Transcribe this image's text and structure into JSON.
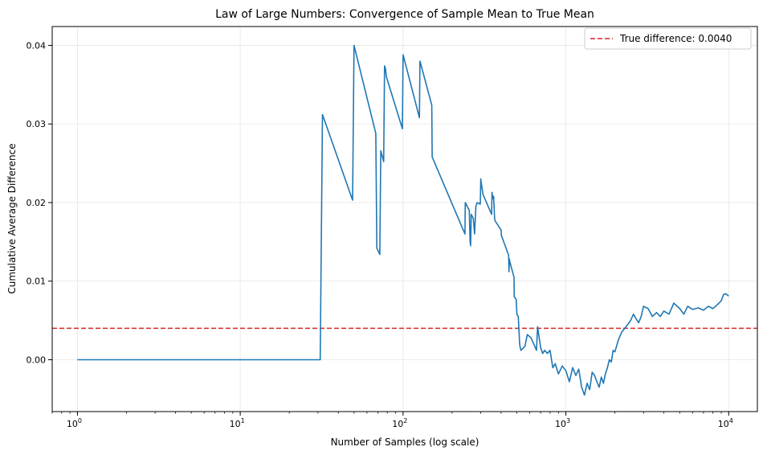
{
  "chart_data": {
    "type": "line",
    "title": "Law of Large Numbers: Convergence of Sample Mean to True Mean",
    "xlabel": "Number of Samples (log scale)",
    "ylabel": "Cumulative Average Difference",
    "xscale": "log",
    "xlim": [
      0.7,
      15000
    ],
    "ylim": [
      -0.0066,
      0.0424
    ],
    "xticks": [
      {
        "value": 1,
        "base": "10",
        "exp": "0"
      },
      {
        "value": 10,
        "base": "10",
        "exp": "1"
      },
      {
        "value": 100,
        "base": "10",
        "exp": "2"
      },
      {
        "value": 1000,
        "base": "10",
        "exp": "3"
      },
      {
        "value": 10000,
        "base": "10",
        "exp": "4"
      }
    ],
    "yticks": [
      {
        "value": 0.0,
        "label": "0.00"
      },
      {
        "value": 0.01,
        "label": "0.01"
      },
      {
        "value": 0.02,
        "label": "0.02"
      },
      {
        "value": 0.03,
        "label": "0.03"
      },
      {
        "value": 0.04,
        "label": "0.04"
      }
    ],
    "grid": true,
    "legend_position": "top-right",
    "reference_line": {
      "y": 0.004,
      "label": "True difference: 0.0040",
      "color": "#d62728",
      "style": "dashed"
    },
    "series": [
      {
        "color": "#1f77b4",
        "x": [
          1,
          31,
          32,
          49,
          50,
          68,
          69,
          72,
          73,
          76,
          77,
          78,
          79,
          99,
          100,
          126,
          127,
          150,
          151,
          240,
          241,
          255,
          258,
          260,
          262,
          270,
          275,
          280,
          285,
          298,
          300,
          302,
          310,
          350,
          352,
          356,
          360,
          365,
          367,
          400,
          402,
          445,
          447,
          450,
          452,
          480,
          482,
          495,
          500,
          510,
          520,
          525,
          530,
          560,
          580,
          610,
          660,
          670,
          700,
          720,
          740,
          770,
          800,
          830,
          860,
          900,
          950,
          1000,
          1050,
          1100,
          1150,
          1200,
          1250,
          1300,
          1350,
          1400,
          1450,
          1500,
          1550,
          1600,
          1650,
          1700,
          1750,
          1800,
          1850,
          1900,
          1950,
          2000,
          2100,
          2200,
          2300,
          2400,
          2500,
          2600,
          2700,
          2800,
          2900,
          3000,
          3200,
          3400,
          3600,
          3800,
          4000,
          4300,
          4600,
          5000,
          5300,
          5600,
          6000,
          6500,
          7000,
          7500,
          8000,
          8500,
          9000,
          9300,
          9600,
          10000
        ],
        "y": [
          0.0,
          0.0,
          0.0312,
          0.0203,
          0.04,
          0.0288,
          0.0142,
          0.0134,
          0.0266,
          0.0252,
          0.0374,
          0.037,
          0.036,
          0.0294,
          0.0388,
          0.0308,
          0.038,
          0.0324,
          0.0258,
          0.016,
          0.02,
          0.019,
          0.015,
          0.0145,
          0.0185,
          0.018,
          0.016,
          0.0195,
          0.02,
          0.0198,
          0.023,
          0.0225,
          0.021,
          0.0185,
          0.0213,
          0.0205,
          0.0208,
          0.018,
          0.0177,
          0.0165,
          0.0158,
          0.0133,
          0.0112,
          0.0128,
          0.0125,
          0.0105,
          0.008,
          0.0077,
          0.0058,
          0.0055,
          0.002,
          0.0015,
          0.0012,
          0.0017,
          0.0032,
          0.0028,
          0.0012,
          0.0042,
          0.0015,
          0.0008,
          0.0012,
          0.0008,
          0.0012,
          -0.001,
          -0.0005,
          -0.0018,
          -0.0008,
          -0.0014,
          -0.0028,
          -0.001,
          -0.002,
          -0.0012,
          -0.0035,
          -0.0045,
          -0.003,
          -0.0038,
          -0.0016,
          -0.002,
          -0.0028,
          -0.0035,
          -0.0022,
          -0.003,
          -0.0018,
          -0.001,
          0.0,
          -0.0003,
          0.0012,
          0.001,
          0.0025,
          0.0035,
          0.004,
          0.0045,
          0.005,
          0.0058,
          0.0052,
          0.0047,
          0.0055,
          0.0068,
          0.0065,
          0.0055,
          0.006,
          0.0055,
          0.0062,
          0.0058,
          0.0072,
          0.0065,
          0.0058,
          0.0068,
          0.0064,
          0.0066,
          0.0063,
          0.0068,
          0.0065,
          0.007,
          0.0075,
          0.0083,
          0.0084,
          0.0081
        ]
      }
    ]
  }
}
